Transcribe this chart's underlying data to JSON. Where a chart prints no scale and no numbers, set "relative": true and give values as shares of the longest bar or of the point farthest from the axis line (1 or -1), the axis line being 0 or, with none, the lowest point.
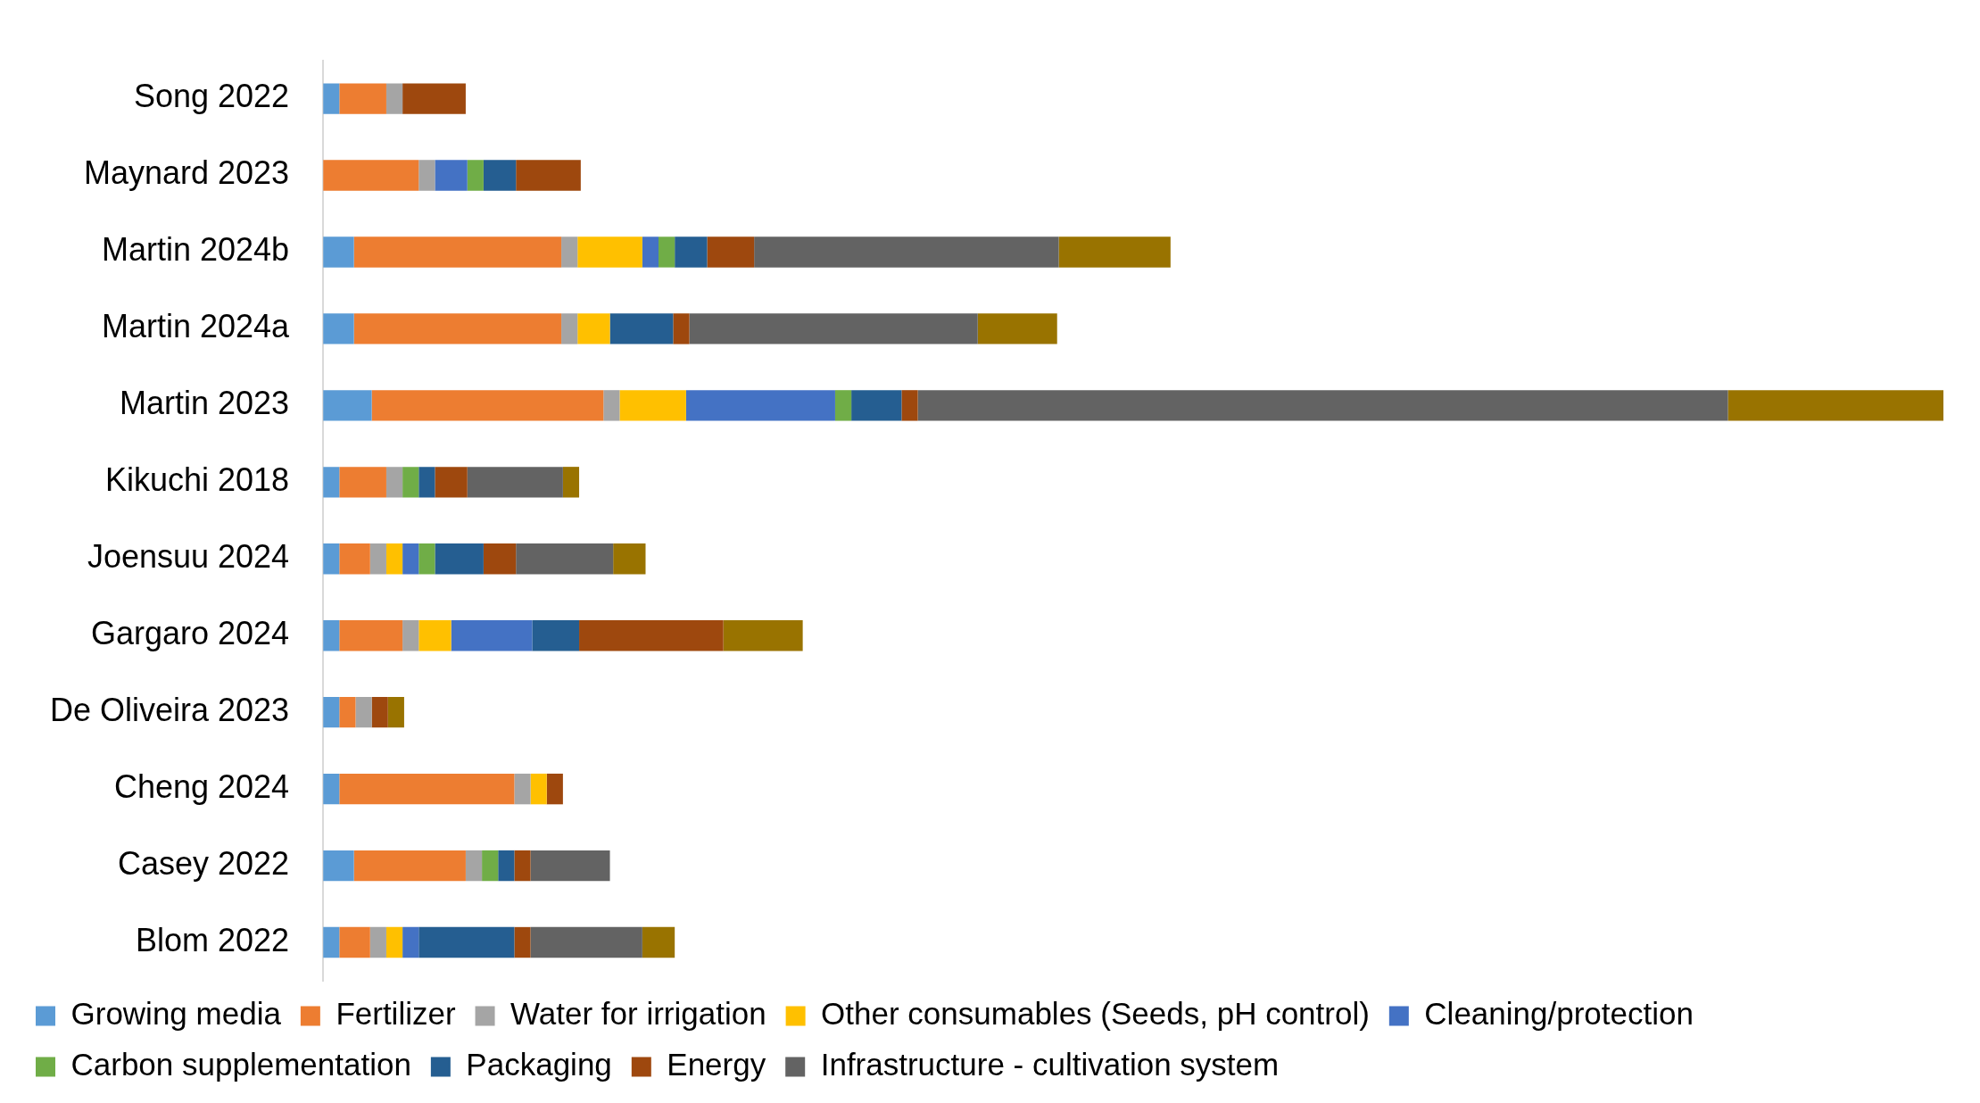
{
  "chart_data": {
    "type": "bar",
    "orientation": "horizontal",
    "stacked": true,
    "relative": true,
    "grid": false,
    "legend": "bottom",
    "categories": [
      "Song 2022",
      "Maynard 2023",
      "Martin 2024b",
      "Martin 2024a",
      "Martin 2023",
      "Kikuchi 2018",
      "Joensuu 2024",
      "Gargaro 2024",
      "De Oliveira 2023",
      "Cheng 2024",
      "Casey 2022",
      "Blom 2022"
    ],
    "series": [
      {
        "name": "Growing media",
        "color": "#5b9bd5",
        "values": [
          0.01,
          null,
          0.019,
          0.019,
          0.03,
          0.01,
          0.01,
          0.01,
          0.01,
          0.01,
          0.019,
          0.01
        ]
      },
      {
        "name": "Fertilizer",
        "color": "#ed7d31",
        "values": [
          0.029,
          0.059,
          0.128,
          0.128,
          0.143,
          0.029,
          0.019,
          0.039,
          0.01,
          0.108,
          0.069,
          0.019
        ]
      },
      {
        "name": "Water for irrigation",
        "color": "#a5a5a5",
        "values": [
          0.01,
          0.01,
          0.01,
          0.01,
          0.01,
          0.01,
          0.01,
          0.01,
          0.01,
          0.01,
          0.01,
          0.01
        ]
      },
      {
        "name": "Other consumables (Seeds, pH control)",
        "color": "#ffc000",
        "values": [
          null,
          null,
          0.04,
          0.02,
          0.041,
          null,
          0.01,
          0.02,
          null,
          0.01,
          null,
          0.01
        ]
      },
      {
        "name": "Cleaning/protection",
        "color": "#4472c4",
        "values": [
          null,
          0.02,
          0.01,
          null,
          0.092,
          null,
          0.01,
          0.05,
          null,
          null,
          null,
          0.01
        ]
      },
      {
        "name": "Carbon supplementation",
        "color": "#70ad47",
        "values": [
          null,
          0.01,
          0.01,
          null,
          0.01,
          0.01,
          0.01,
          null,
          null,
          null,
          0.01,
          null
        ]
      },
      {
        "name": "Packaging",
        "color": "#255e91",
        "values": [
          null,
          0.02,
          0.02,
          0.039,
          0.031,
          0.01,
          0.03,
          0.029,
          null,
          null,
          0.01,
          0.059
        ]
      },
      {
        "name": "Energy",
        "color": "#9e480e",
        "values": [
          0.039,
          0.04,
          0.029,
          0.01,
          0.01,
          0.02,
          0.02,
          0.089,
          0.01,
          0.01,
          0.01,
          0.01
        ]
      },
      {
        "name": "Infrastructure - cultivation system",
        "color": "#636363",
        "values": [
          null,
          null,
          0.188,
          0.178,
          0.5,
          0.059,
          0.06,
          null,
          null,
          null,
          0.049,
          0.069
        ]
      },
      {
        "color": "#997300",
        "values": [
          null,
          null,
          0.069,
          0.049,
          0.133,
          0.01,
          0.02,
          0.049,
          0.01,
          null,
          null,
          0.02
        ]
      }
    ]
  }
}
